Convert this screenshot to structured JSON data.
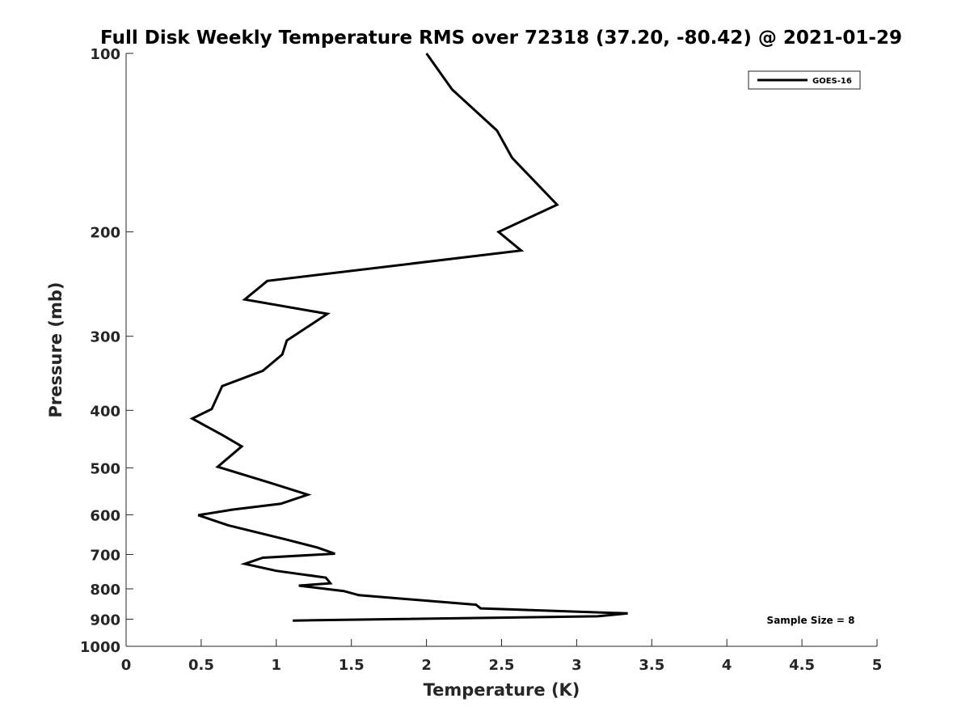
{
  "chart_data": {
    "type": "line",
    "title": "Full Disk Weekly Temperature RMS over 72318 (37.20, -80.42) @ 2021-01-29",
    "xlabel": "Temperature (K)",
    "ylabel": "Pressure (mb)",
    "xlim": [
      0,
      5
    ],
    "ylim": [
      1000,
      100
    ],
    "yscale": "log",
    "y_reversed": true,
    "xticks": [
      "0",
      "0.5",
      "1",
      "1.5",
      "2",
      "2.5",
      "3",
      "3.5",
      "4",
      "4.5",
      "5"
    ],
    "yticks": [
      "100",
      "200",
      "300",
      "400",
      "500",
      "600",
      "700",
      "800",
      "900",
      "1000"
    ],
    "grid": false,
    "legend_position": "top-right",
    "annotation": "Sample Size = 8",
    "series": [
      {
        "name": "GOES-16",
        "color": "#000000",
        "x": [
          2.0,
          2.17,
          2.47,
          2.57,
          2.87,
          2.48,
          2.63,
          0.94,
          0.79,
          1.34,
          1.07,
          1.04,
          0.91,
          0.64,
          0.57,
          0.44,
          0.64,
          0.77,
          0.61,
          0.96,
          1.21,
          1.03,
          0.71,
          0.48,
          0.68,
          1.07,
          1.27,
          1.39,
          0.91,
          0.79,
          1.0,
          1.33,
          1.36,
          1.15,
          1.45,
          1.55,
          2.33,
          2.36,
          3.34,
          3.14,
          1.11
        ],
        "y": [
          100,
          115,
          135,
          150,
          180,
          200,
          215,
          242,
          260,
          275,
          305,
          322,
          343,
          364,
          398,
          413,
          440,
          460,
          498,
          530,
          555,
          575,
          588,
          601,
          625,
          661,
          681,
          698,
          709,
          726,
          746,
          766,
          783,
          790,
          807,
          820,
          851,
          863,
          880,
          890,
          905
        ]
      }
    ]
  }
}
